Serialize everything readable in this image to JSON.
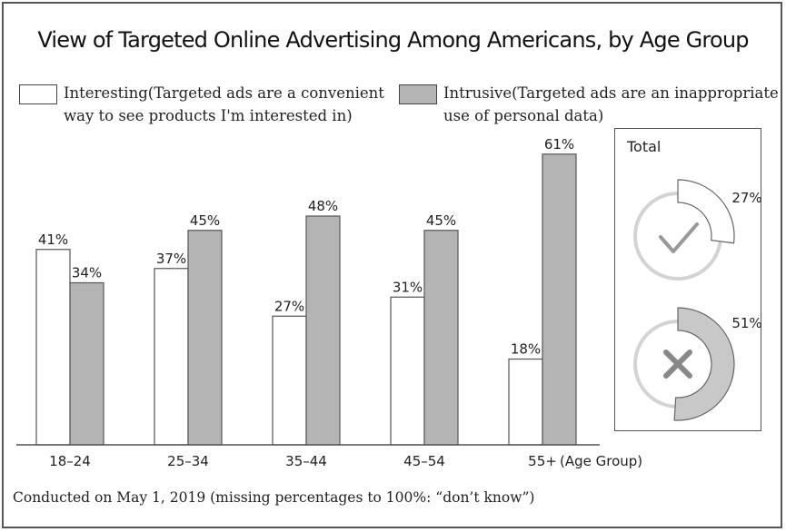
{
  "title": "View of Targeted Online Advertising Among Americans, by Age Group",
  "legend": [
    {
      "line1": "Interesting(Targeted ads are a convenient",
      "line2": "way to see products I'm interested in)",
      "color": "#ffffff"
    },
    {
      "line1": "Intrusive(Targeted ads are an inappropriate",
      "line2": "use of personal data)",
      "color": "#b4b4b4"
    }
  ],
  "footnote": "Conducted on May 1, 2019 (missing percentages to 100%: “don’t know”)",
  "axis_suffix": "(Age Group)",
  "total": {
    "label": "Total",
    "items": [
      {
        "name": "Interesting",
        "value": 27,
        "label": "27%",
        "icon": "check-icon"
      },
      {
        "name": "Intrusive",
        "value": 51,
        "label": "51%",
        "icon": "x-icon"
      }
    ]
  },
  "chart_data": {
    "type": "bar",
    "title": "View of Targeted Online Advertising Among Americans, by Age Group",
    "xlabel": "(Age Group)",
    "ylabel": "",
    "categories": [
      "18–24",
      "25–34",
      "35–44",
      "45–54",
      "55+"
    ],
    "series": [
      {
        "name": "Interesting(Targeted ads are a convenient way to see products I'm interested in)",
        "values": [
          41,
          37,
          27,
          31,
          18
        ],
        "labels": [
          "41%",
          "37%",
          "27%",
          "31%",
          "18%"
        ],
        "color": "#ffffff"
      },
      {
        "name": "Intrusive(Targeted ads are an inappropriate use of personal data)",
        "values": [
          34,
          45,
          48,
          45,
          61
        ],
        "labels": [
          "34%",
          "45%",
          "48%",
          "45%",
          "61%"
        ],
        "color": "#b4b4b4"
      }
    ],
    "ylim": [
      0,
      61
    ],
    "grid": false,
    "legend_position": "top"
  }
}
